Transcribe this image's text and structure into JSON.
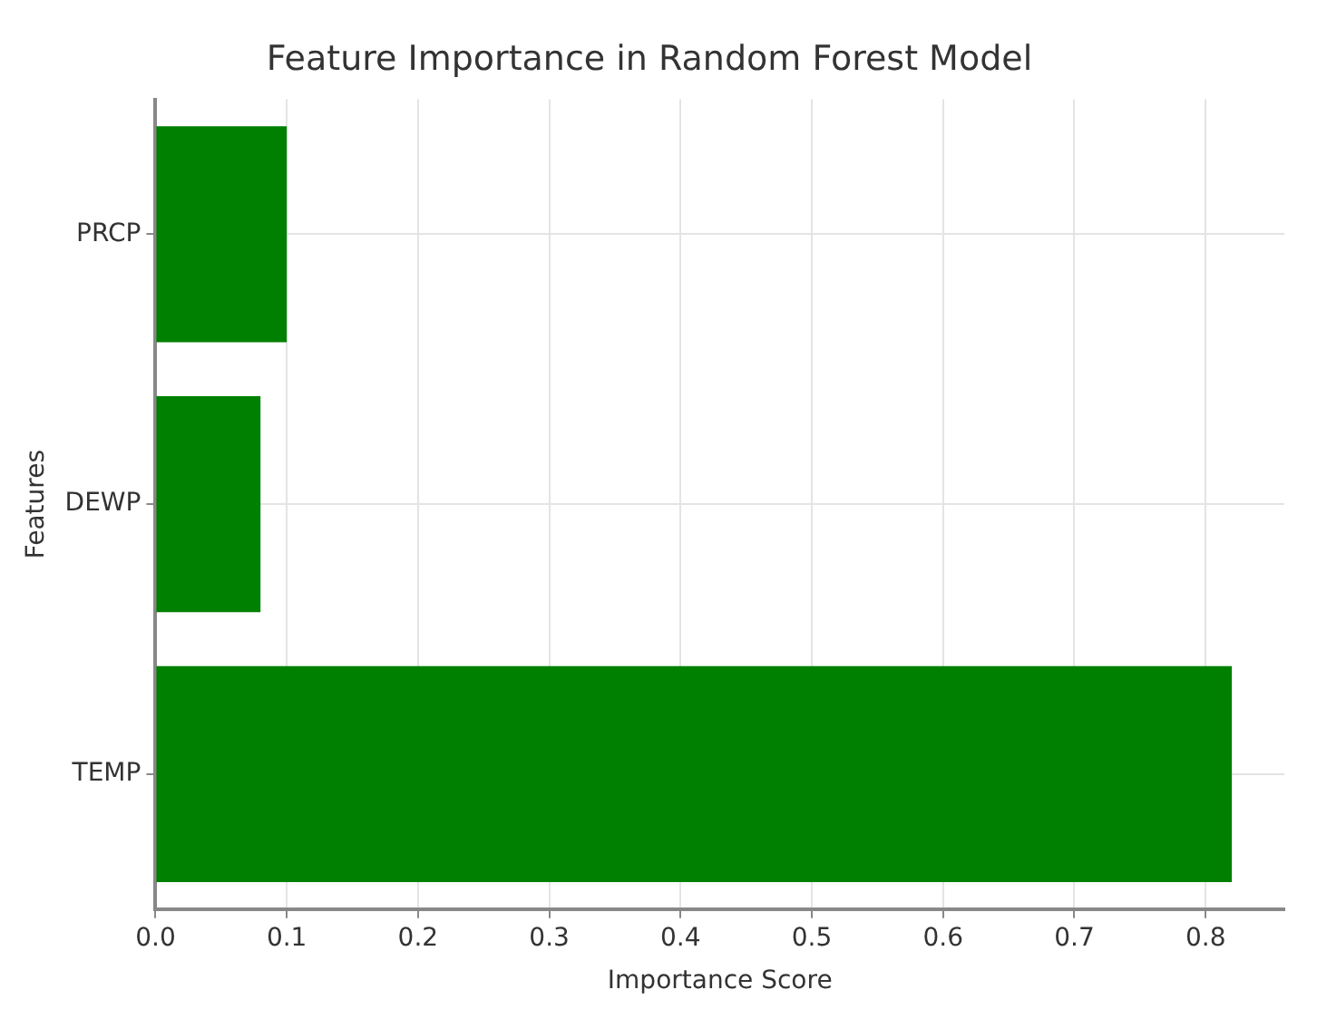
{
  "chart_data": {
    "type": "bar",
    "orientation": "horizontal",
    "title": "Feature Importance in Random Forest Model",
    "xlabel": "Importance Score",
    "ylabel": "Features",
    "categories": [
      "PRCP",
      "DEWP",
      "TEMP"
    ],
    "values": [
      0.1,
      0.08,
      0.82
    ],
    "color": "#008000",
    "xlim": [
      0,
      0.86
    ],
    "xticks": [
      {
        "value": 0,
        "label": "0.0"
      },
      0.1,
      0.2,
      0.3,
      0.4,
      0.5,
      0.6,
      0.7,
      0.8
    ],
    "grid": true,
    "legend": false
  }
}
